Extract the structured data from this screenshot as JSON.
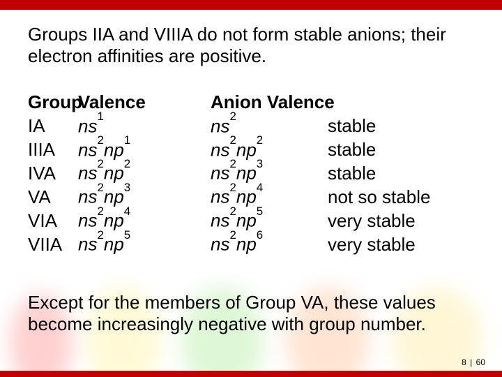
{
  "colors": {
    "bar": "#c00000",
    "background": "#ffffff",
    "text": "#000000",
    "splash": [
      "#ff3030",
      "#ffe84a",
      "#6fdc4b",
      "#ff8a3d",
      "#ffd84a"
    ]
  },
  "typography": {
    "body_fontsize_pt": 20,
    "page_fontsize_pt": 9,
    "fontfamily": "Arial"
  },
  "intro": "Groups IIA and VIIIA do not form stable anions; their electron affinities are positive.",
  "headers": {
    "group": "Group",
    "valence": "Valence",
    "anion": "Anion Valence"
  },
  "rows": [
    {
      "group": "IA",
      "valence_html": "ns<sup>1</sup>",
      "anion_html": "ns<sup>2</sup>",
      "stability": "stable"
    },
    {
      "group": "IIIA",
      "valence_html": "ns<sup>2</sup>np<sup>1</sup>",
      "anion_html": "ns<sup>2</sup>np<sup>2</sup>",
      "stability": "stable"
    },
    {
      "group": "IVA",
      "valence_html": "ns<sup>2</sup>np<sup>2</sup>",
      "anion_html": "ns<sup>2</sup>np<sup>3</sup>",
      "stability": "stable"
    },
    {
      "group": "VA",
      "valence_html": "ns<sup>2</sup>np<sup>3</sup>",
      "anion_html": "ns<sup>2</sup>np<sup>4</sup>",
      "stability": "not so stable"
    },
    {
      "group": "VIA",
      "valence_html": "ns<sup>2</sup>np<sup>4</sup>",
      "anion_html": "ns<sup>2</sup>np<sup>5</sup>",
      "stability": "very stable"
    },
    {
      "group": "VIIA",
      "valence_html": "ns<sup>2</sup>np<sup>5</sup>",
      "anion_html": "ns<sup>2</sup>np<sup>6</sup>",
      "stability": "very stable"
    }
  ],
  "outro": "Except for the members of Group VA, these values become increasingly negative with group number.",
  "pager": {
    "page": "8",
    "sep": "|",
    "total": "60"
  }
}
